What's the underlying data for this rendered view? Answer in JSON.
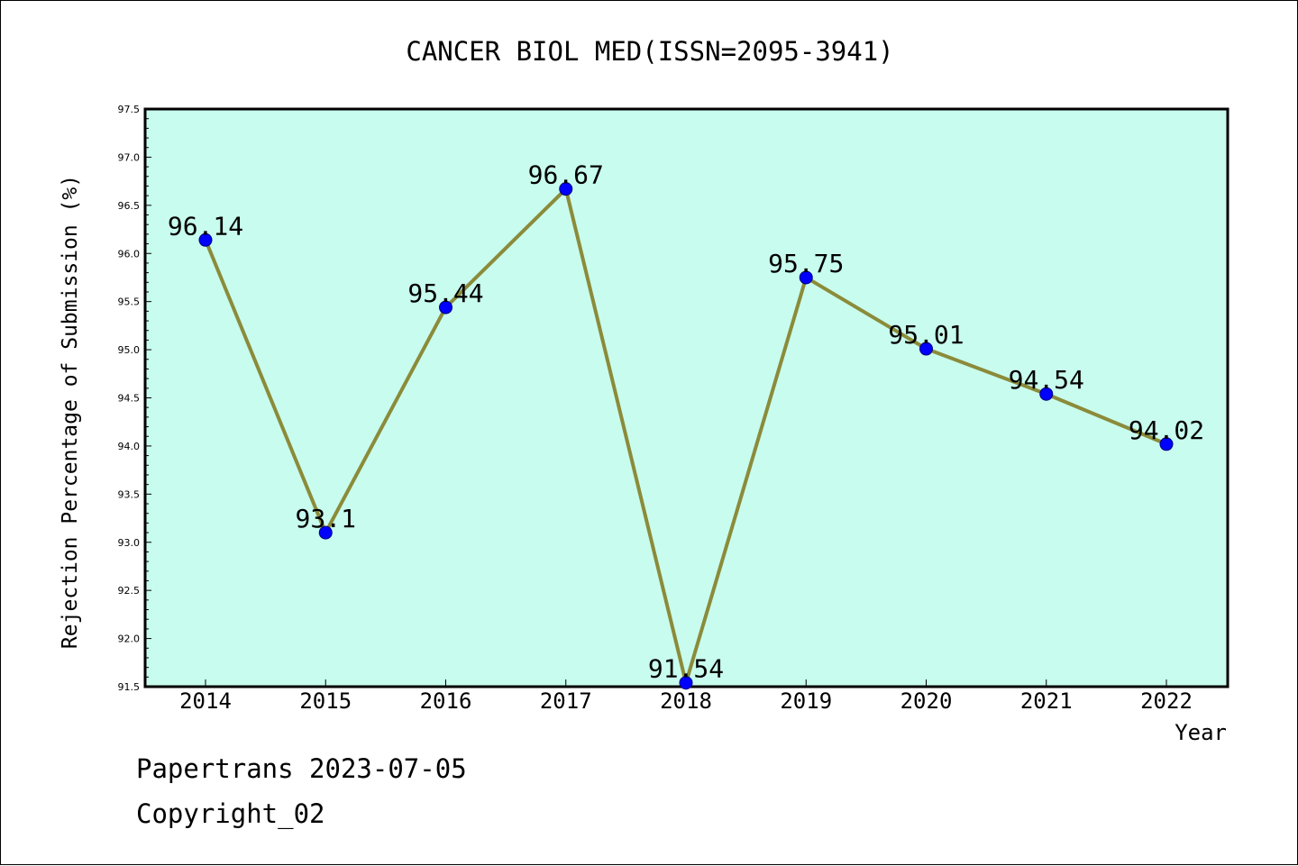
{
  "chart_data": {
    "type": "line",
    "title": "CANCER BIOL MED(ISSN=2095-3941)",
    "xlabel": "Year",
    "ylabel": "Rejection Percentage of Submission (%)",
    "categories": [
      "2014",
      "2015",
      "2016",
      "2017",
      "2018",
      "2019",
      "2020",
      "2021",
      "2022"
    ],
    "series": [
      {
        "values": [
          96.14,
          93.1,
          95.44,
          96.67,
          91.54,
          95.75,
          95.01,
          94.54,
          94.02
        ]
      }
    ],
    "data_labels": [
      "96.14",
      "93.1",
      "95.44",
      "96.67",
      "91.54",
      "95.75",
      "95.01",
      "94.54",
      "94.02"
    ],
    "ylim": [
      91.5,
      97.5
    ],
    "yticks": [
      "91.5",
      "92.0",
      "92.5",
      "93.0",
      "93.5",
      "94.0",
      "94.5",
      "95.0",
      "95.5",
      "96.0",
      "96.5",
      "97.0",
      "97.5"
    ],
    "grid": false,
    "legend": "none",
    "colors": {
      "plot_background": "#c8fcee",
      "line": "#8b8b3a",
      "marker": "#0000ff",
      "axis": "#000000"
    }
  },
  "footer": {
    "line1": "Papertrans 2023-07-05",
    "line2": "Copyright_02"
  }
}
